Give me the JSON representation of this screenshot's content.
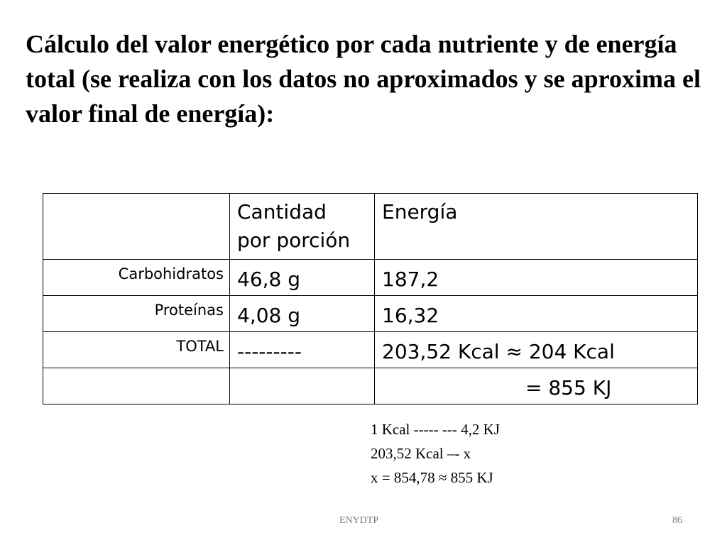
{
  "title": "Cálculo del valor energético por cada nutriente y de energía total (se realiza con los datos no aproximados y se aproxima el valor final de energía):",
  "table": {
    "header": {
      "col1": "",
      "col2_line1": "Cantidad",
      "col2_line2": "por porción",
      "col3": "Energía"
    },
    "rows": [
      {
        "label": "Carbohidratos",
        "cantidad": "46,8 g",
        "energia": "187,2"
      },
      {
        "label": "Proteínas",
        "cantidad": "4,08 g",
        "energia": "16,32"
      },
      {
        "label": "TOTAL",
        "cantidad": "---------",
        "energia": "203,52 Kcal ≈ 204 Kcal"
      },
      {
        "label": "",
        "cantidad": "",
        "energia": "= 855 KJ"
      }
    ]
  },
  "calculation": {
    "line1": "1 Kcal ----- --- 4,2 KJ",
    "line2": "203,52 Kcal –- x",
    "line3": "",
    "line4": "x = 854,78 ≈ 855 KJ"
  },
  "footer": {
    "source": "ENYDTP",
    "page_number": "86"
  }
}
